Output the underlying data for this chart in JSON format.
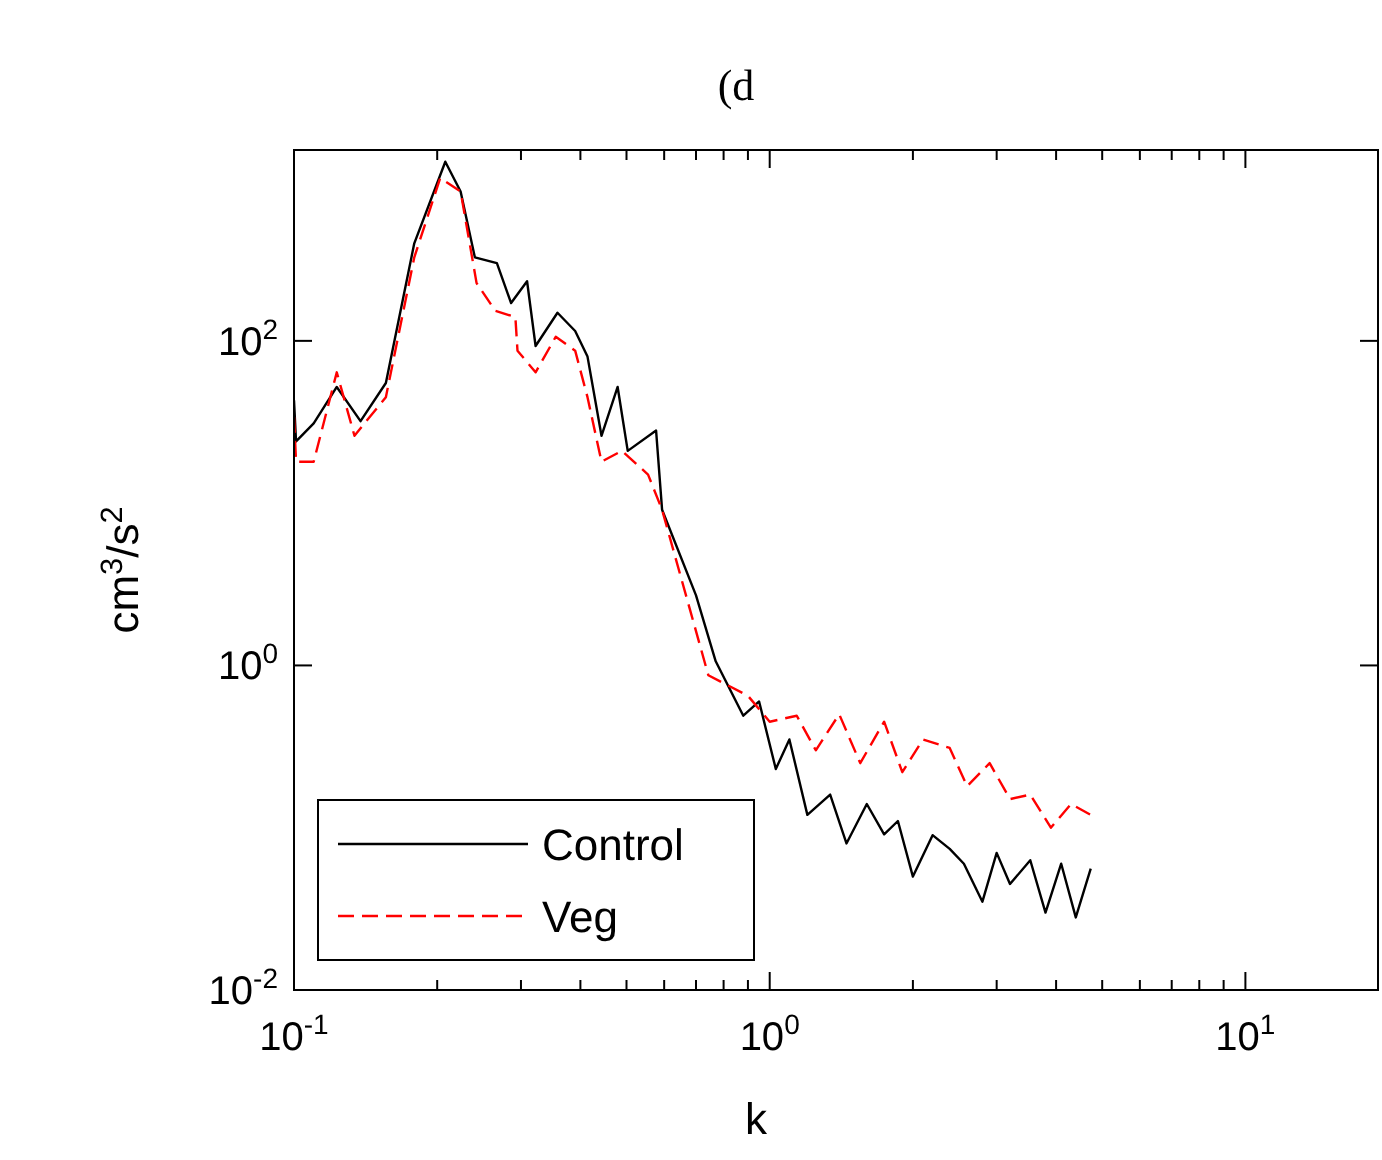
{
  "chart_data": {
    "type": "line",
    "title": "(d",
    "xlabel": "k",
    "ylabel": "cm$^{3}$/s$^{2}$",
    "log": "xy",
    "xlim": [
      0.1,
      19
    ],
    "ylim": [
      0.01,
      1500
    ],
    "xticks": [
      {
        "value": 0.1,
        "label": "10$^{-1}$"
      },
      {
        "value": 0.2,
        "label": null
      },
      {
        "value": 0.3,
        "label": null
      },
      {
        "value": 0.4,
        "label": null
      },
      {
        "value": 0.5,
        "label": null
      },
      {
        "value": 0.6,
        "label": null
      },
      {
        "value": 0.7,
        "label": null
      },
      {
        "value": 0.8,
        "label": null
      },
      {
        "value": 0.9,
        "label": null
      },
      {
        "value": 1,
        "label": "10$^{0}$"
      },
      {
        "value": 2,
        "label": null
      },
      {
        "value": 3,
        "label": null
      },
      {
        "value": 4,
        "label": null
      },
      {
        "value": 5,
        "label": null
      },
      {
        "value": 6,
        "label": null
      },
      {
        "value": 7,
        "label": null
      },
      {
        "value": 8,
        "label": null
      },
      {
        "value": 9,
        "label": null
      },
      {
        "value": 10,
        "label": "10$^{1}$"
      }
    ],
    "yticks": [
      {
        "value": 0.01,
        "label": "10$^{-2}$"
      },
      {
        "value": 1,
        "label": "10$^{0}$"
      },
      {
        "value": 100,
        "label": "10$^{2}$"
      }
    ],
    "grid": false,
    "legend": "bottom left",
    "marker": "none",
    "series": [
      {
        "name": "Control",
        "color": "#000000",
        "line_style": "solid",
        "x": [
          0.1,
          0.101,
          0.11,
          0.123,
          0.138,
          0.156,
          0.179,
          0.208,
          0.224,
          0.24,
          0.267,
          0.286,
          0.309,
          0.322,
          0.358,
          0.39,
          0.414,
          0.443,
          0.479,
          0.503,
          0.577,
          0.594,
          0.7,
          0.77,
          0.88,
          0.95,
          1.03,
          1.1,
          1.2,
          1.34,
          1.45,
          1.6,
          1.74,
          1.86,
          2.0,
          2.2,
          2.39,
          2.56,
          2.8,
          3.0,
          3.2,
          3.53,
          3.8,
          4.1,
          4.4,
          4.73
        ],
        "values": [
          43,
          24,
          31,
          52,
          32,
          55,
          399,
          1270,
          832,
          327,
          301,
          171,
          233,
          93,
          149,
          115,
          80,
          26,
          52,
          21,
          28,
          9.1,
          2.7,
          1.06,
          0.49,
          0.6,
          0.23,
          0.35,
          0.12,
          0.16,
          0.08,
          0.14,
          0.091,
          0.11,
          0.05,
          0.09,
          0.074,
          0.06,
          0.035,
          0.07,
          0.045,
          0.063,
          0.03,
          0.06,
          0.028,
          0.056
        ]
      },
      {
        "name": "Veg",
        "color": "#ff0000",
        "line_style": "dashed",
        "x": [
          0.1,
          0.101,
          0.11,
          0.123,
          0.134,
          0.156,
          0.179,
          0.203,
          0.224,
          0.242,
          0.265,
          0.292,
          0.295,
          0.322,
          0.355,
          0.39,
          0.414,
          0.443,
          0.489,
          0.555,
          0.594,
          0.743,
          0.9,
          1.0,
          1.14,
          1.25,
          1.4,
          1.55,
          1.74,
          1.9,
          2.1,
          2.39,
          2.6,
          2.9,
          3.2,
          3.53,
          3.9,
          4.3,
          4.73
        ],
        "values": [
          34,
          18,
          18,
          64,
          26,
          45,
          327,
          1010,
          832,
          227,
          153,
          140,
          87,
          64,
          106,
          87,
          45,
          18,
          21,
          15,
          9.1,
          0.87,
          0.65,
          0.45,
          0.49,
          0.3,
          0.5,
          0.25,
          0.45,
          0.22,
          0.35,
          0.31,
          0.18,
          0.25,
          0.15,
          0.16,
          0.1,
          0.14,
          0.12
        ]
      }
    ]
  }
}
